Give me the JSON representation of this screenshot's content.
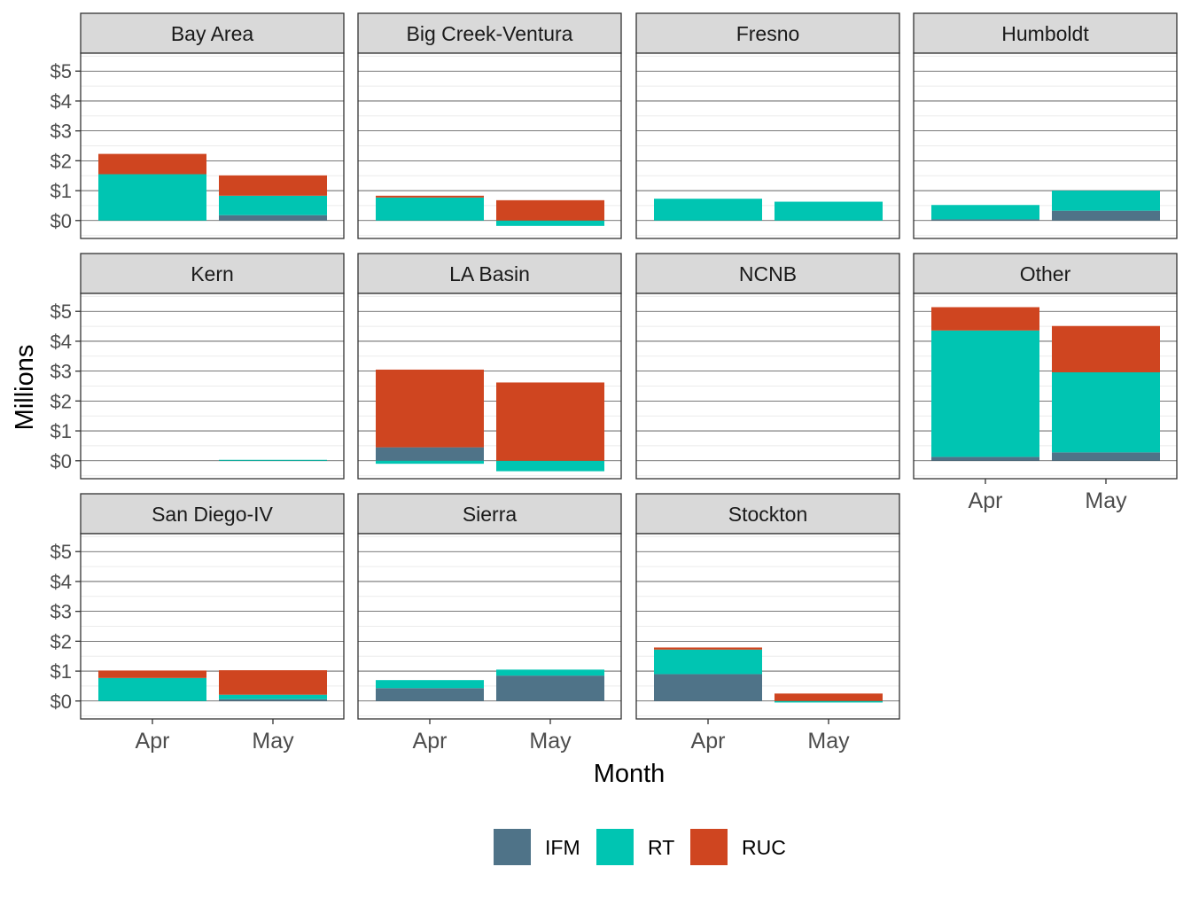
{
  "colors": {
    "IFM": "#4f7388",
    "RT": "#00c5b2",
    "RUC": "#cf4520",
    "strip_fill": "#d9d9d9",
    "panel_border": "#333333",
    "grid_major": "#4d4d4d",
    "grid_minor": "#ebebeb"
  },
  "chart_data": {
    "type": "bar",
    "stacked": true,
    "faceted": true,
    "facet_columns": 4,
    "xlabel": "Month",
    "ylabel": "Millions",
    "categories": [
      "Apr",
      "May"
    ],
    "ylim": [
      -0.6,
      5.6
    ],
    "yticks": [
      0,
      1,
      2,
      3,
      4,
      5
    ],
    "ytick_labels": [
      "$0",
      "$1",
      "$2",
      "$3",
      "$4",
      "$5"
    ],
    "grid": true,
    "legend": {
      "position": "bottom",
      "entries": [
        "IFM",
        "RT",
        "RUC"
      ]
    },
    "facets": [
      {
        "name": "Bay Area",
        "IFM": [
          0,
          0.18
        ],
        "RT": [
          1.55,
          0.65
        ],
        "RUC": [
          0.68,
          0.68
        ]
      },
      {
        "name": "Big Creek-Ventura",
        "IFM": [
          0,
          0
        ],
        "RT": [
          0.77,
          -0.18
        ],
        "RUC": [
          0.06,
          0.68
        ]
      },
      {
        "name": "Fresno",
        "IFM": [
          0,
          0
        ],
        "RT": [
          0.73,
          0.63
        ],
        "RUC": [
          0,
          0
        ]
      },
      {
        "name": "Humboldt",
        "IFM": [
          0.04,
          0.33
        ],
        "RT": [
          0.48,
          0.67
        ],
        "RUC": [
          0,
          0
        ]
      },
      {
        "name": "Kern",
        "IFM": [
          0,
          0
        ],
        "RT": [
          0,
          0.03
        ],
        "RUC": [
          0,
          0
        ]
      },
      {
        "name": "LA Basin",
        "IFM": [
          0.45,
          0
        ],
        "RT": [
          -0.1,
          -0.35
        ],
        "RUC": [
          2.6,
          2.62
        ]
      },
      {
        "name": "NCNB",
        "IFM": [
          0,
          0
        ],
        "RT": [
          0,
          0
        ],
        "RUC": [
          0,
          0
        ]
      },
      {
        "name": "Other",
        "IFM": [
          0.13,
          0.28
        ],
        "RT": [
          4.23,
          2.68
        ],
        "RUC": [
          0.78,
          1.55
        ]
      },
      {
        "name": "San Diego-IV",
        "IFM": [
          0,
          0.06
        ],
        "RT": [
          0.77,
          0.15
        ],
        "RUC": [
          0.25,
          0.82
        ]
      },
      {
        "name": "Sierra",
        "IFM": [
          0.43,
          0.85
        ],
        "RT": [
          0.27,
          0.2
        ],
        "RUC": [
          0,
          0
        ]
      },
      {
        "name": "Stockton",
        "IFM": [
          0.9,
          0
        ],
        "RT": [
          0.82,
          -0.05
        ],
        "RUC": [
          0.07,
          0.25
        ]
      }
    ]
  }
}
